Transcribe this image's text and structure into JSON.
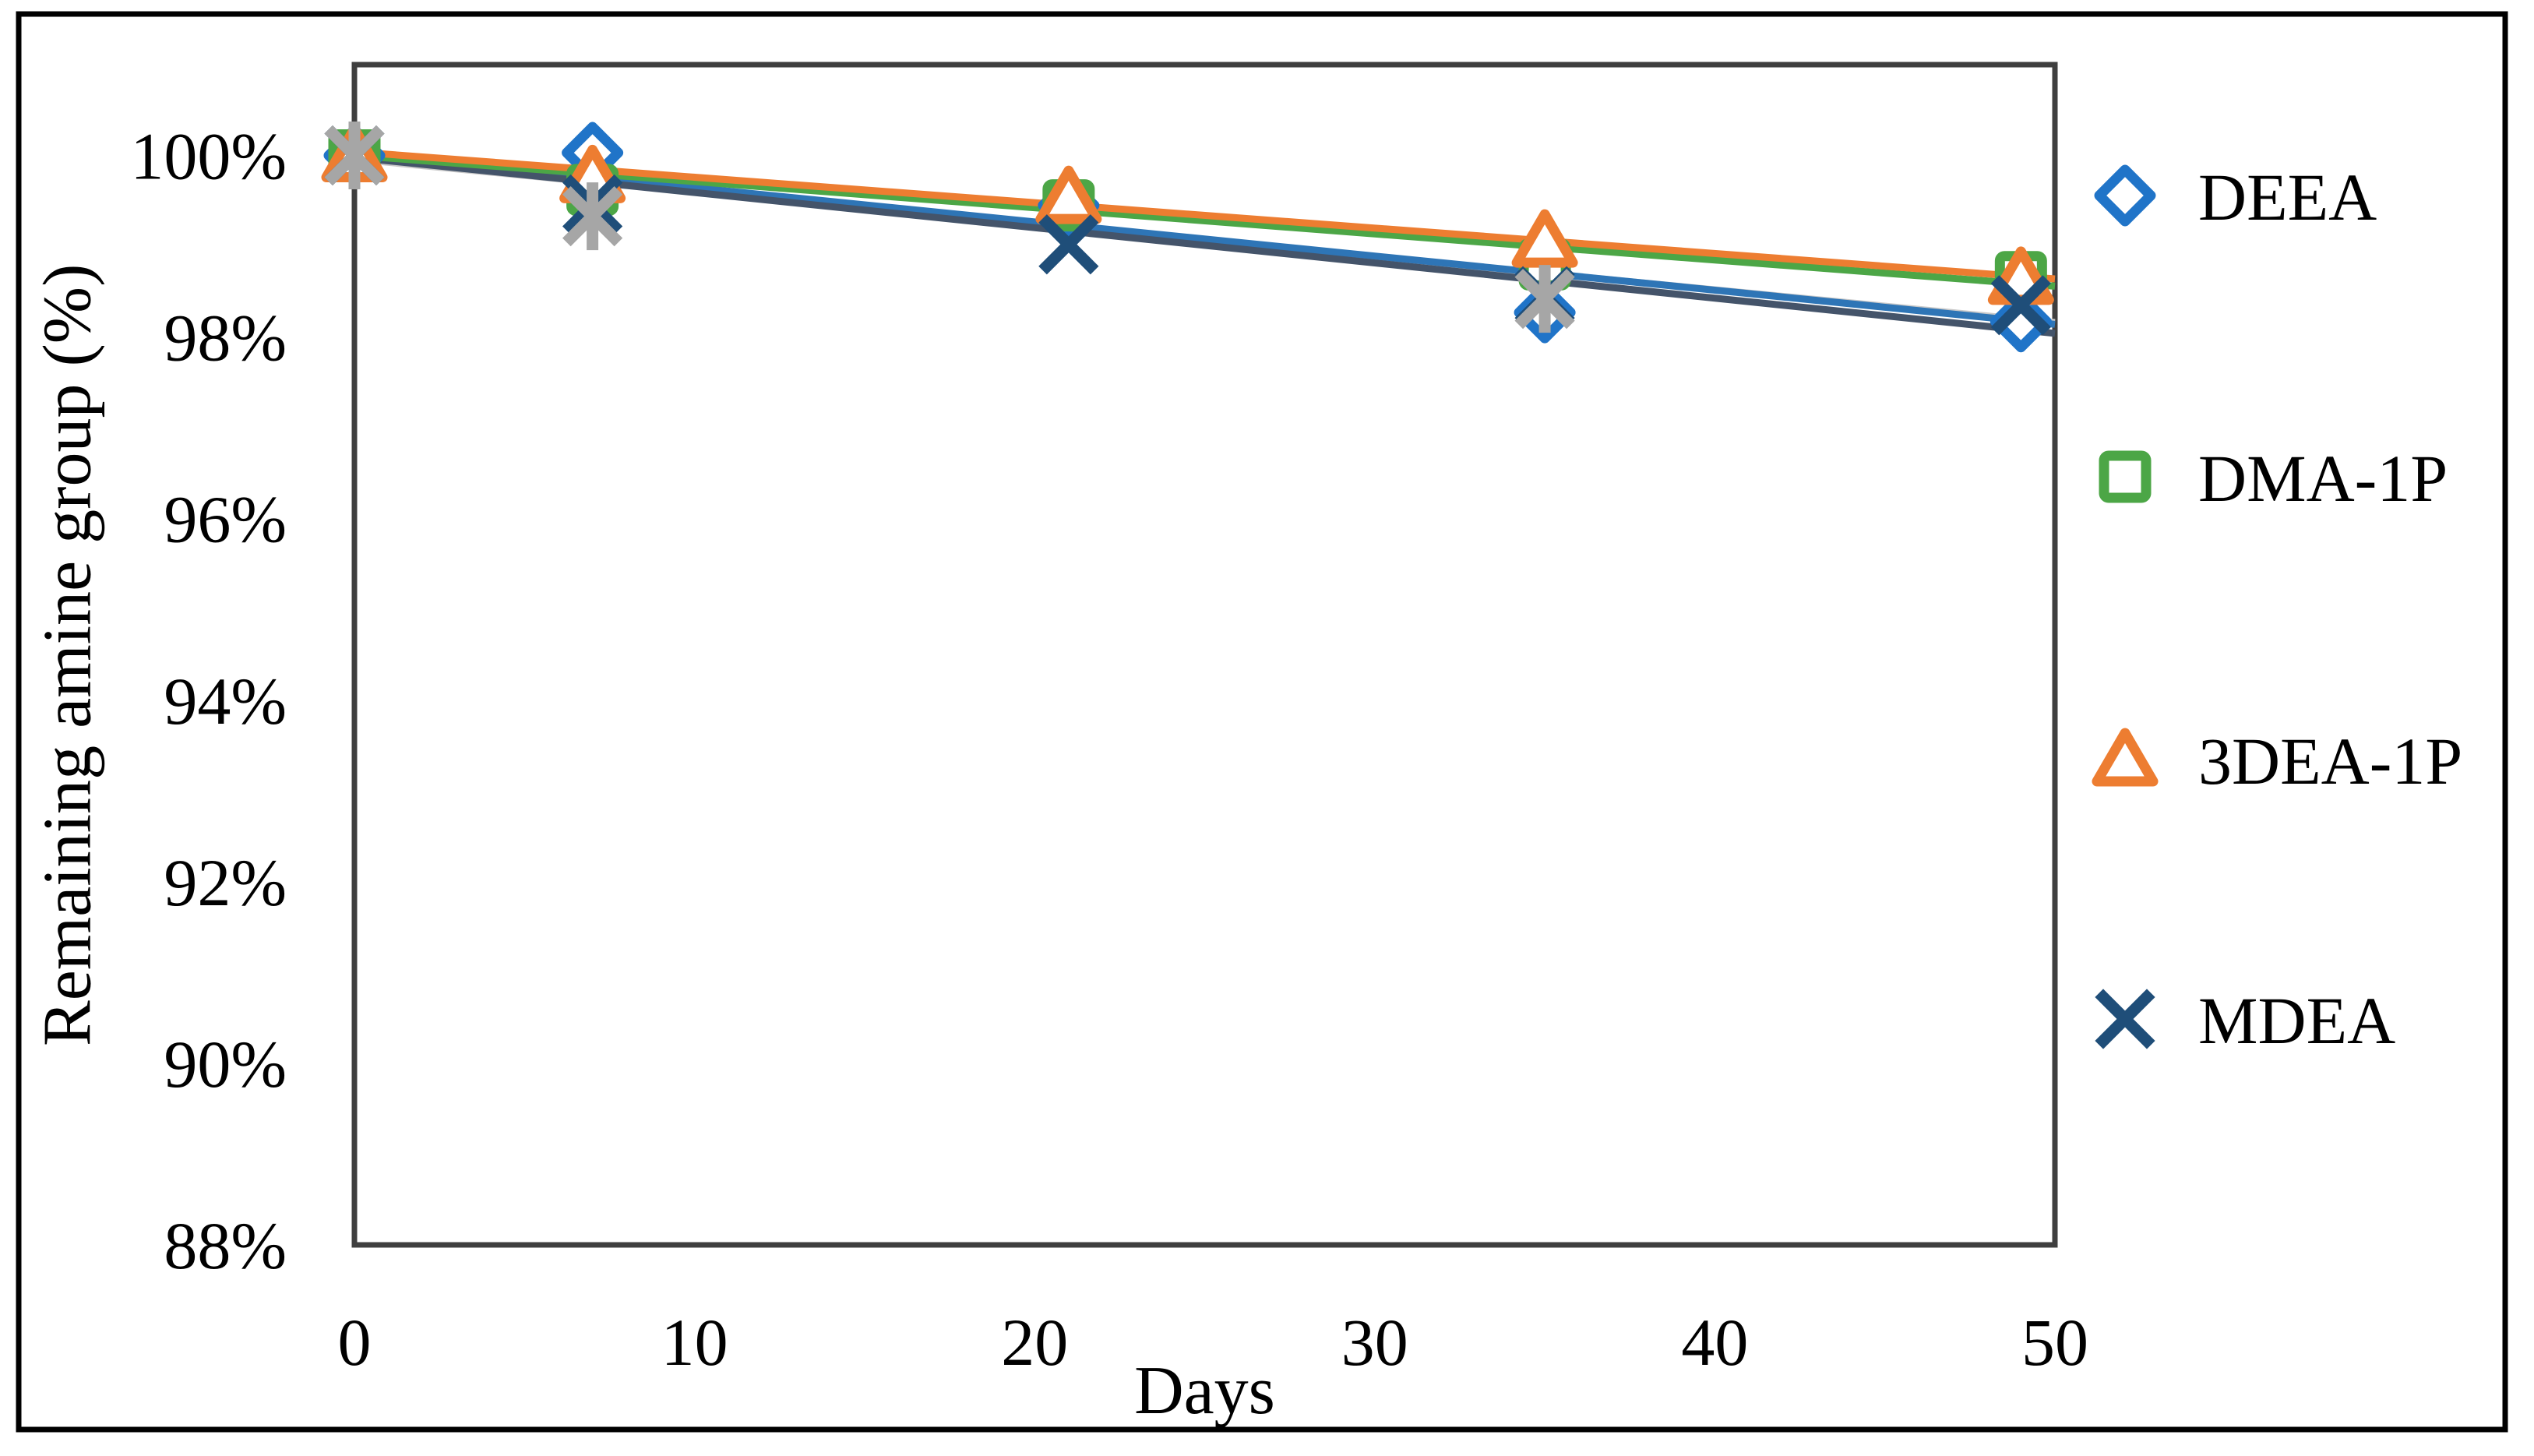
{
  "figure": {
    "background_color": "#ffffff",
    "outer_border_color": "#000000",
    "plot_border_color": "#3f3f3f"
  },
  "chart_data": {
    "type": "scatter",
    "title": "",
    "xlabel": "Days",
    "ylabel": "Remaining amine group (%)",
    "xlim": [
      0,
      50
    ],
    "ylim": [
      88,
      101
    ],
    "grid": false,
    "legend_position": "right",
    "x_ticks": [
      {
        "value": 0,
        "label": "0"
      },
      {
        "value": 10,
        "label": "10"
      },
      {
        "value": 20,
        "label": "20"
      },
      {
        "value": 30,
        "label": "30"
      },
      {
        "value": 40,
        "label": "40"
      },
      {
        "value": 50,
        "label": "50"
      }
    ],
    "y_ticks": [
      {
        "value": 100,
        "label": "100%"
      },
      {
        "value": 98,
        "label": "98%"
      },
      {
        "value": 96,
        "label": "96%"
      },
      {
        "value": 94,
        "label": "94%"
      },
      {
        "value": 92,
        "label": "92%"
      },
      {
        "value": 90,
        "label": "90%"
      },
      {
        "value": 88,
        "label": "88%"
      }
    ],
    "series": [
      {
        "name": "DEEA",
        "marker": "diamond",
        "marker_color": "#2074C8",
        "line_color": "#2E75B6",
        "in_legend": true,
        "x": [
          0,
          7,
          21,
          35,
          49
        ],
        "y": [
          100.0,
          100.03,
          99.45,
          98.27,
          98.17
        ],
        "trendline": {
          "x": [
            0,
            50
          ],
          "y": [
            100.02,
            98.14
          ]
        }
      },
      {
        "name": "DMA-1P",
        "marker": "square",
        "marker_color": "#4CA646",
        "line_color": "#4CA646",
        "in_legend": true,
        "x": [
          0,
          7,
          21,
          35,
          49
        ],
        "y": [
          100.0,
          99.62,
          99.45,
          98.8,
          98.66
        ],
        "trendline": {
          "x": [
            0,
            50
          ],
          "y": [
            100.0,
            98.56
          ]
        }
      },
      {
        "name": "3DEA-1P",
        "marker": "triangle",
        "marker_color": "#ED7D31",
        "line_color": "#ED7D31",
        "in_legend": true,
        "x": [
          0,
          7,
          21,
          35,
          49
        ],
        "y": [
          100.0,
          99.77,
          99.54,
          99.06,
          98.65
        ],
        "trendline": {
          "x": [
            0,
            50
          ],
          "y": [
            100.04,
            98.64
          ]
        }
      },
      {
        "name": "MDEA",
        "marker": "x",
        "marker_color": "#1F4E79",
        "line_color": "#44546A",
        "in_legend": true,
        "x": [
          0,
          7,
          21,
          35,
          49
        ],
        "y": [
          100.0,
          99.46,
          99.02,
          98.45,
          98.35
        ],
        "trendline": {
          "x": [
            0,
            50
          ],
          "y": [
            99.98,
            98.04
          ]
        }
      },
      {
        "name": "unlabeled",
        "marker": "asterisk",
        "marker_color": "#A6A6A6",
        "line_color": "#C9C9C9",
        "in_legend": false,
        "x": [
          0,
          7,
          35
        ],
        "y": [
          100.0,
          99.33,
          98.42
        ],
        "trendline": {
          "x": [
            0,
            50
          ],
          "y": [
            99.96,
            98.16
          ]
        }
      }
    ],
    "legend_labels": [
      "DEEA",
      "DMA-1P",
      "3DEA-1P",
      "MDEA"
    ]
  }
}
